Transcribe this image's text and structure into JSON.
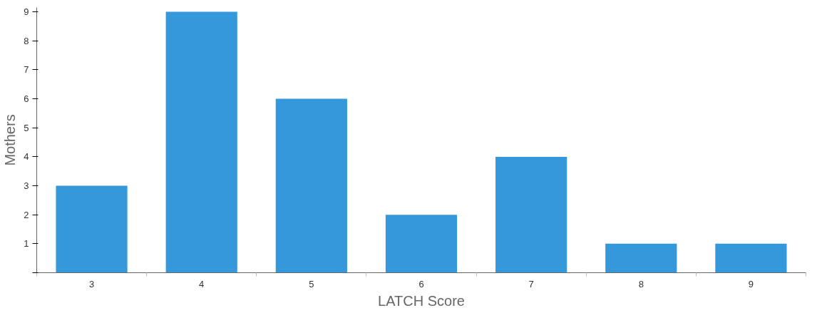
{
  "chart_data": {
    "type": "bar",
    "xlabel": "LATCH Score",
    "ylabel": "Mothers",
    "categories": [
      "3",
      "4",
      "5",
      "6",
      "7",
      "8",
      "9"
    ],
    "values": [
      3,
      9,
      6,
      2,
      4,
      1,
      1
    ],
    "color": "#3498db",
    "ylim": [
      0,
      9.15
    ],
    "yticks": [
      {
        "value": 0,
        "label": null
      },
      1,
      2,
      3,
      4,
      5,
      6,
      7,
      8,
      9
    ],
    "grid": false
  }
}
